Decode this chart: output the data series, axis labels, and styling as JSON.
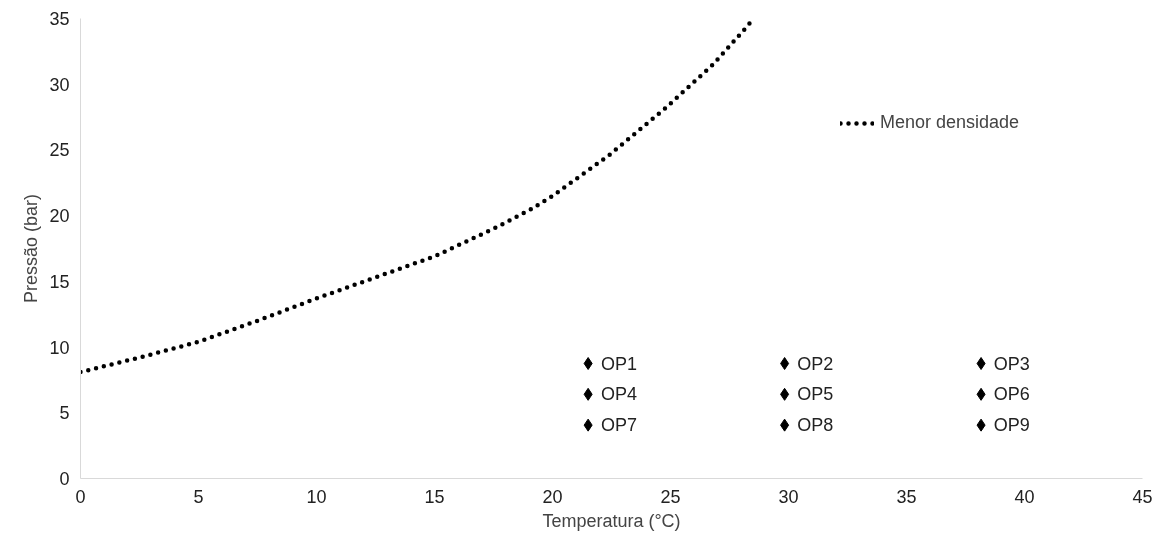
{
  "chart_data": {
    "type": "line",
    "xlabel": "Temperatura (°C)",
    "ylabel": "Pressão (bar)",
    "xlim": [
      0,
      45
    ],
    "ylim": [
      0,
      35
    ],
    "xticks": [
      0,
      5,
      10,
      15,
      20,
      25,
      30,
      35,
      40,
      45
    ],
    "yticks": [
      0,
      5,
      10,
      15,
      20,
      25,
      30,
      35
    ],
    "grid": false,
    "legend": "right",
    "line_style": "dotted",
    "series": [
      {
        "name": "Menor densidade",
        "color": "#000000",
        "x": [
          0,
          2.5,
          5,
          7.5,
          10,
          12.5,
          15,
          17.5,
          19.1,
          20,
          22.4,
          24.8,
          26.8,
          28.3,
          28.5
        ],
        "values": [
          8.1,
          9.2,
          10.4,
          12.0,
          13.7,
          15.3,
          16.9,
          19.0,
          20.5,
          21.5,
          24.6,
          28.2,
          31.5,
          34.5,
          35
        ]
      },
      {
        "name": "OP1",
        "type": "scatter",
        "marker": "diamond",
        "color": "#000000"
      },
      {
        "name": "OP2",
        "type": "scatter",
        "marker": "diamond",
        "color": "#000000"
      },
      {
        "name": "OP3",
        "type": "scatter",
        "marker": "diamond",
        "color": "#000000"
      },
      {
        "name": "OP4",
        "type": "scatter",
        "marker": "diamond",
        "color": "#000000"
      },
      {
        "name": "OP5",
        "type": "scatter",
        "marker": "diamond",
        "color": "#000000"
      },
      {
        "name": "OP6",
        "type": "scatter",
        "marker": "diamond",
        "color": "#000000"
      },
      {
        "name": "OP7",
        "type": "scatter",
        "marker": "diamond",
        "color": "#000000"
      },
      {
        "name": "OP8",
        "type": "scatter",
        "marker": "diamond",
        "color": "#000000"
      },
      {
        "name": "OP9",
        "type": "scatter",
        "marker": "diamond",
        "color": "#000000"
      }
    ]
  }
}
